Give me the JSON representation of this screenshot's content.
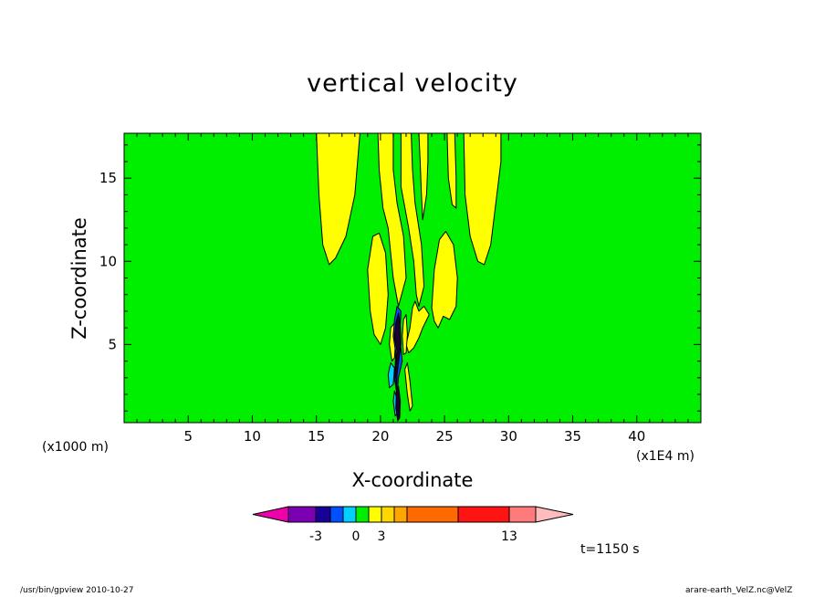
{
  "chart_data": {
    "type": "heatmap",
    "title": "vertical velocity",
    "xlabel": "X-coordinate",
    "ylabel": "Z-coordinate",
    "x_unit_note": "(x1E4 m)",
    "y_unit_note": "(x1000 m)",
    "xlim": [
      0,
      45
    ],
    "ylim": [
      0.3,
      17.7
    ],
    "x_ticks": [
      "5",
      "10",
      "15",
      "20",
      "25",
      "30",
      "35",
      "40"
    ],
    "y_ticks": [
      "5",
      "10",
      "15"
    ],
    "x_tick_values": [
      5,
      10,
      15,
      20,
      25,
      30,
      35,
      40
    ],
    "y_tick_values": [
      5,
      10,
      15
    ],
    "background_color": "#00ee00",
    "regions": [
      {
        "level": "0 to 1",
        "color": "#ffff00",
        "points": [
          [
            15.0,
            17.7
          ],
          [
            15.2,
            14.0
          ],
          [
            15.5,
            11.0
          ],
          [
            16.0,
            9.8
          ],
          [
            16.5,
            10.2
          ],
          [
            17.3,
            11.5
          ],
          [
            18.0,
            14.0
          ],
          [
            18.4,
            17.7
          ]
        ]
      },
      {
        "level": "0 to 1",
        "color": "#ffff00",
        "points": [
          [
            19.2,
            7.0
          ],
          [
            19.0,
            9.5
          ],
          [
            19.4,
            11.5
          ],
          [
            19.9,
            11.7
          ],
          [
            20.4,
            10.5
          ],
          [
            20.6,
            8.0
          ],
          [
            20.4,
            6.0
          ],
          [
            20.0,
            5.0
          ],
          [
            19.5,
            5.6
          ]
        ]
      },
      {
        "level": "0 to 1",
        "color": "#ffff00",
        "points": [
          [
            19.8,
            17.7
          ],
          [
            19.9,
            15.5
          ],
          [
            20.2,
            13.2
          ],
          [
            20.6,
            12.0
          ],
          [
            21.0,
            9.0
          ],
          [
            21.4,
            7.3
          ],
          [
            22.0,
            9.0
          ],
          [
            21.8,
            11.5
          ],
          [
            21.3,
            13.5
          ],
          [
            21.0,
            15.5
          ],
          [
            21.0,
            17.7
          ]
        ]
      },
      {
        "level": "0 to 1",
        "color": "#ffff00",
        "points": [
          [
            21.6,
            17.7
          ],
          [
            21.6,
            14.5
          ],
          [
            22.2,
            12.0
          ],
          [
            22.6,
            10.0
          ],
          [
            22.8,
            8.0
          ],
          [
            23.0,
            7.3
          ],
          [
            23.4,
            8.5
          ],
          [
            23.2,
            11.0
          ],
          [
            22.7,
            13.5
          ],
          [
            22.5,
            15.5
          ],
          [
            22.4,
            17.7
          ]
        ]
      },
      {
        "level": "0 to 1",
        "color": "#ffff00",
        "points": [
          [
            23.0,
            17.7
          ],
          [
            23.1,
            16.0
          ],
          [
            23.2,
            14.0
          ],
          [
            23.3,
            12.5
          ],
          [
            23.6,
            14.0
          ],
          [
            23.7,
            16.0
          ],
          [
            23.7,
            17.7
          ]
        ]
      },
      {
        "level": "0 to 1",
        "color": "#ffff00",
        "points": [
          [
            24.0,
            7.2
          ],
          [
            24.2,
            9.5
          ],
          [
            24.6,
            11.3
          ],
          [
            25.1,
            11.8
          ],
          [
            25.7,
            11.0
          ],
          [
            26.0,
            9.0
          ],
          [
            25.9,
            7.3
          ],
          [
            25.4,
            6.5
          ],
          [
            24.9,
            6.7
          ],
          [
            24.5,
            6.0
          ],
          [
            24.2,
            6.4
          ]
        ]
      },
      {
        "level": "0 to 1",
        "color": "#ffff00",
        "points": [
          [
            25.2,
            17.7
          ],
          [
            25.3,
            15.0
          ],
          [
            25.6,
            13.4
          ],
          [
            25.9,
            13.2
          ],
          [
            25.9,
            15.0
          ],
          [
            25.8,
            17.7
          ]
        ]
      },
      {
        "level": "0 to 1",
        "color": "#ffff00",
        "points": [
          [
            26.5,
            17.7
          ],
          [
            26.6,
            14.0
          ],
          [
            27.0,
            11.5
          ],
          [
            27.6,
            10.0
          ],
          [
            28.1,
            9.8
          ],
          [
            28.6,
            11.0
          ],
          [
            29.0,
            13.5
          ],
          [
            29.4,
            16.0
          ],
          [
            29.4,
            17.7
          ]
        ]
      },
      {
        "level": "0 to 1",
        "color": "#ffff00",
        "points": [
          [
            22.0,
            5.0
          ],
          [
            22.3,
            6.0
          ],
          [
            22.5,
            7.2
          ],
          [
            22.7,
            7.6
          ],
          [
            23.0,
            7.0
          ],
          [
            23.4,
            7.3
          ],
          [
            23.8,
            6.8
          ],
          [
            23.3,
            6.0
          ],
          [
            23.0,
            5.4
          ],
          [
            22.6,
            4.8
          ],
          [
            22.2,
            4.5
          ]
        ]
      },
      {
        "level": "0 to 1",
        "color": "#ffff00",
        "points": [
          [
            20.8,
            6.0
          ],
          [
            20.7,
            5.0
          ],
          [
            20.9,
            4.0
          ],
          [
            21.1,
            4.2
          ],
          [
            21.2,
            5.4
          ],
          [
            21.1,
            6.3
          ]
        ]
      },
      {
        "level": "0 to 1",
        "color": "#ffff00",
        "points": [
          [
            21.8,
            6.5
          ],
          [
            21.7,
            5.5
          ],
          [
            21.8,
            4.4
          ],
          [
            22.0,
            4.5
          ],
          [
            22.1,
            5.6
          ],
          [
            22.0,
            6.8
          ]
        ]
      },
      {
        "level": "0 to 1",
        "color": "#ffff00",
        "points": [
          [
            21.9,
            3.5
          ],
          [
            22.1,
            2.0
          ],
          [
            22.3,
            1.0
          ],
          [
            22.5,
            1.3
          ],
          [
            22.3,
            2.8
          ],
          [
            22.1,
            3.9
          ]
        ]
      },
      {
        "level": "-1 to 0",
        "color": "#00d0ff",
        "points": [
          [
            20.6,
            3.2
          ],
          [
            20.8,
            3.9
          ],
          [
            21.1,
            3.6
          ],
          [
            21.0,
            2.6
          ],
          [
            20.7,
            2.4
          ]
        ]
      },
      {
        "level": "-2 to -1",
        "color": "#0050ff",
        "points": [
          [
            21.1,
            6.5
          ],
          [
            21.3,
            7.3
          ],
          [
            21.6,
            7.0
          ],
          [
            21.5,
            5.5
          ],
          [
            21.7,
            4.0
          ],
          [
            21.4,
            3.0
          ],
          [
            21.3,
            2.0
          ],
          [
            21.1,
            2.9
          ],
          [
            21.2,
            4.5
          ],
          [
            21.0,
            5.5
          ]
        ]
      },
      {
        "level": "< -3",
        "color": "#1a0033",
        "points": [
          [
            21.2,
            6.3
          ],
          [
            21.4,
            6.9
          ],
          [
            21.55,
            6.1
          ],
          [
            21.6,
            5.0
          ],
          [
            21.45,
            4.2
          ],
          [
            21.3,
            3.2
          ],
          [
            21.25,
            2.4
          ],
          [
            21.15,
            3.5
          ],
          [
            21.3,
            4.6
          ],
          [
            21.1,
            5.4
          ]
        ]
      },
      {
        "level": "-1 to 0",
        "color": "#00d0ff",
        "points": [
          [
            21.0,
            1.6
          ],
          [
            21.1,
            2.2
          ],
          [
            21.3,
            1.7
          ],
          [
            21.35,
            0.9
          ],
          [
            21.15,
            0.7
          ]
        ]
      },
      {
        "level": "< -3",
        "color": "#1a0033",
        "points": [
          [
            21.25,
            2.3
          ],
          [
            21.4,
            2.5
          ],
          [
            21.55,
            1.6
          ],
          [
            21.5,
            0.6
          ],
          [
            21.35,
            0.4
          ],
          [
            21.2,
            1.2
          ]
        ]
      }
    ],
    "colorbar": {
      "colors": [
        "#ee00aa",
        "#7b00b4",
        "#1a0096",
        "#0050ff",
        "#00d0ff",
        "#00ee00",
        "#ffff00",
        "#ffd700",
        "#ffa500",
        "#ff6a00",
        "#ff1414",
        "#ff7b7b",
        "#ffbcbc"
      ],
      "tick_labels": [
        "-3",
        "0",
        "3",
        "13"
      ],
      "tick_boundary_index": [
        1,
        4,
        6,
        10
      ]
    }
  },
  "time_label": "t=1150 s",
  "footer": {
    "left": "/usr/bin/gpview   2010-10-27",
    "right": "arare-earth_VelZ.nc@VelZ"
  }
}
